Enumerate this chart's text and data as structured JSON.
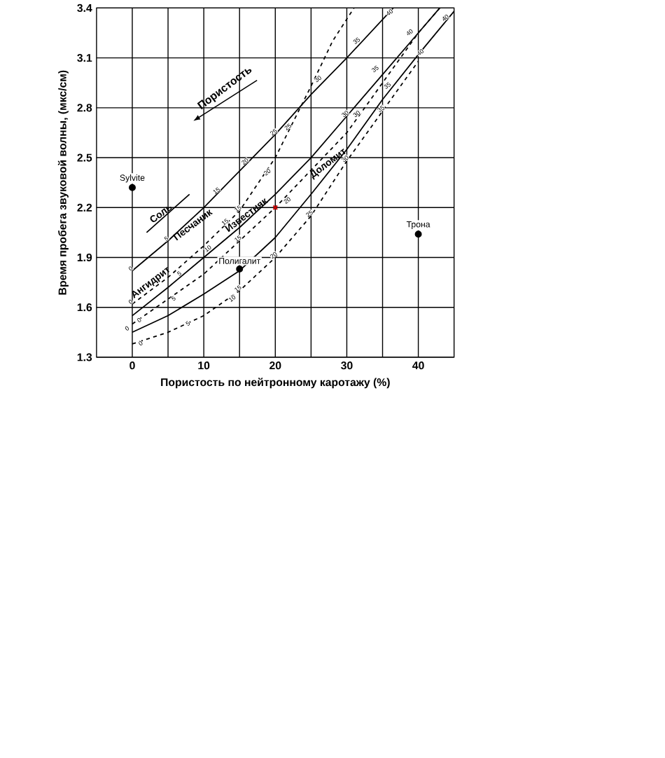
{
  "chart_data": {
    "type": "line",
    "xlabel": "Пористость по нейтронному каротажу (%)",
    "ylabel": "Время пробега звуковой волны, (мкс/см)",
    "xlim": [
      -5,
      45
    ],
    "xticks": [
      0,
      {
        "value": 5,
        "label": null
      },
      10,
      {
        "value": 15,
        "label": null
      },
      20,
      {
        "value": 25,
        "label": null
      },
      30,
      {
        "value": 35,
        "label": null
      },
      40
    ],
    "ylim": [
      1.3,
      3.4
    ],
    "yticks": [
      1.3,
      1.6,
      1.9,
      2.2,
      2.5,
      2.8,
      3.1,
      3.4
    ],
    "grid": true,
    "series": [
      {
        "type": "line",
        "name": "Песчаник",
        "color": "#000000",
        "line_style": "solid",
        "marker": "none",
        "x": [
          0,
          5,
          10,
          15,
          20,
          25,
          30,
          36.5
        ],
        "values": [
          1.82,
          2.0,
          2.2,
          2.42,
          2.64,
          2.88,
          3.1,
          3.4
        ]
      },
      {
        "type": "line",
        "name": "Ангидрит",
        "color": "#000000",
        "line_style": "dashed",
        "marker": "none",
        "x": [
          0,
          5,
          10,
          15,
          20,
          25,
          28,
          31
        ],
        "values": [
          1.62,
          1.78,
          1.97,
          2.18,
          2.5,
          2.93,
          3.2,
          3.4
        ]
      },
      {
        "type": "line",
        "name": "Известняк",
        "color": "#000000",
        "line_style": "solid",
        "marker": "none",
        "x": [
          0,
          5,
          10,
          15,
          20,
          25,
          30,
          35,
          40,
          43
        ],
        "values": [
          1.55,
          1.72,
          1.9,
          2.08,
          2.28,
          2.5,
          2.75,
          3.0,
          3.25,
          3.4
        ]
      },
      {
        "type": "line",
        "color": "#000000",
        "line_style": "dashed",
        "marker": "none",
        "x": [
          0,
          10,
          20,
          30,
          35,
          40,
          43
        ],
        "values": [
          1.5,
          1.8,
          2.2,
          2.65,
          2.95,
          3.25,
          3.4
        ]
      },
      {
        "type": "line",
        "name": "Доломит",
        "color": "#000000",
        "line_style": "solid",
        "marker": "none",
        "x": [
          0,
          5,
          10,
          15,
          20,
          25,
          30,
          35,
          40,
          45
        ],
        "values": [
          1.45,
          1.55,
          1.68,
          1.82,
          2.02,
          2.28,
          2.55,
          2.85,
          3.12,
          3.38
        ]
      },
      {
        "type": "line",
        "color": "#000000",
        "line_style": "dashed",
        "marker": "none",
        "x": [
          0,
          5,
          10,
          15,
          20,
          25,
          30,
          35,
          40
        ],
        "values": [
          1.38,
          1.45,
          1.55,
          1.7,
          1.9,
          2.15,
          2.48,
          2.78,
          3.08
        ]
      },
      {
        "type": "line",
        "name": "Соль",
        "color": "#000000",
        "line_style": "solid",
        "marker": "none",
        "x": [
          2,
          8
        ],
        "values": [
          2.05,
          2.28
        ]
      },
      {
        "type": "scatter",
        "name": "Sylvite",
        "color": "#000000",
        "marker": "circle",
        "x": [
          0
        ],
        "values": [
          2.32
        ]
      },
      {
        "type": "scatter",
        "name": "Трона",
        "color": "#000000",
        "marker": "circle",
        "x": [
          40
        ],
        "values": [
          2.04
        ]
      },
      {
        "type": "scatter",
        "name": "Полигалит",
        "color": "#000000",
        "marker": "circle",
        "x": [
          15
        ],
        "values": [
          1.83
        ]
      },
      {
        "type": "scatter",
        "color": "#cc0000",
        "marker": "cross",
        "x": [
          20
        ],
        "values": [
          2.2
        ]
      }
    ],
    "annotations": [
      "Пористость",
      {
        "text": "40",
        "x": 36.2,
        "y": 3.36
      },
      {
        "text": "40",
        "x": 39.0,
        "y": 3.24
      },
      {
        "text": "40",
        "x": 40.5,
        "y": 3.12
      },
      {
        "text": "40",
        "x": 44,
        "y": 3.328
      },
      {
        "text": "35",
        "x": 31.6,
        "y": 3.19
      },
      {
        "text": "30",
        "x": 26.2,
        "y": 2.96
      },
      {
        "text": "35",
        "x": 34.2,
        "y": 3.02
      },
      {
        "text": "35",
        "x": 35.9,
        "y": 2.92
      },
      {
        "text": "35",
        "x": 35,
        "y": 2.78
      },
      {
        "text": "25",
        "x": 20,
        "y": 2.64
      },
      {
        "text": "30",
        "x": 30,
        "y": 2.75
      },
      {
        "text": "30",
        "x": 31.6,
        "y": 2.75
      },
      {
        "text": "20",
        "x": 16,
        "y": 2.464
      },
      {
        "text": "25",
        "x": 22,
        "y": 2.672
      },
      {
        "text": "15",
        "x": 12,
        "y": 2.288
      },
      {
        "text": "20",
        "x": 19.1,
        "y": 2.4
      },
      {
        "text": "30",
        "x": 30,
        "y": 2.48
      },
      {
        "text": "25",
        "x": 25,
        "y": 2.15
      },
      {
        "text": "20",
        "x": 21.9,
        "y": 2.23
      },
      {
        "text": "15",
        "x": 15,
        "y": 2.18
      },
      {
        "text": "15",
        "x": 13.2,
        "y": 2.1
      },
      {
        "text": "15",
        "x": 15,
        "y": 2.0
      },
      {
        "text": "20",
        "x": 20,
        "y": 1.9
      },
      {
        "text": "15",
        "x": 15,
        "y": 1.7
      },
      {
        "text": "10",
        "x": 10.8,
        "y": 1.94
      },
      {
        "text": "10",
        "x": 14.2,
        "y": 1.64
      },
      {
        "text": "5",
        "x": 5,
        "y": 2.0
      },
      {
        "text": "5",
        "x": 6.8,
        "y": 1.79
      },
      {
        "text": "5",
        "x": 6.0,
        "y": 1.64
      },
      {
        "text": "5",
        "x": 8.0,
        "y": 1.49
      },
      {
        "text": "0",
        "x": 0,
        "y": 1.82
      },
      {
        "text": "0",
        "x": 0,
        "y": 1.62
      },
      {
        "text": "0",
        "x": -0.5,
        "y": 1.46
      },
      {
        "text": "0",
        "x": 1.2,
        "y": 1.51
      },
      {
        "text": "0",
        "x": 1.4,
        "y": 1.37
      }
    ]
  }
}
